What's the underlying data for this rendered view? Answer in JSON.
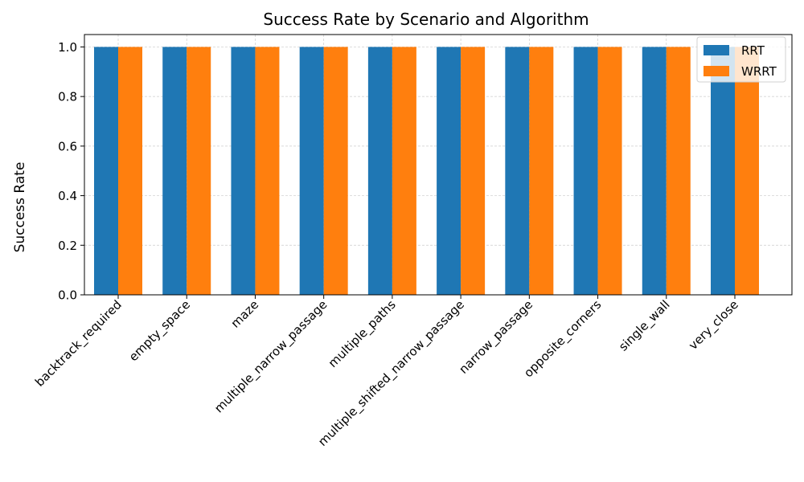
{
  "chart_data": {
    "type": "bar",
    "title": "Success Rate by Scenario and Algorithm",
    "xlabel": "",
    "ylabel": "Success Rate",
    "categories": [
      "backtrack_required",
      "empty_space",
      "maze",
      "multiple_narrow_passage",
      "multiple_paths",
      "multiple_shifted_narrow_passage",
      "narrow_passage",
      "opposite_corners",
      "single_wall",
      "very_close"
    ],
    "series": [
      {
        "name": "RRT",
        "color": "#1f77b4",
        "values": [
          1.0,
          1.0,
          1.0,
          1.0,
          1.0,
          1.0,
          1.0,
          1.0,
          1.0,
          1.0
        ]
      },
      {
        "name": "WRRT",
        "color": "#ff7f0e",
        "values": [
          1.0,
          1.0,
          1.0,
          1.0,
          1.0,
          1.0,
          1.0,
          1.0,
          1.0,
          1.0
        ]
      }
    ],
    "ylim": [
      0,
      1.05
    ],
    "yticks": [
      "0.0",
      "0.2",
      "0.4",
      "0.6",
      "0.8",
      "1.0"
    ],
    "grid": true,
    "legend_position": "top-right"
  }
}
